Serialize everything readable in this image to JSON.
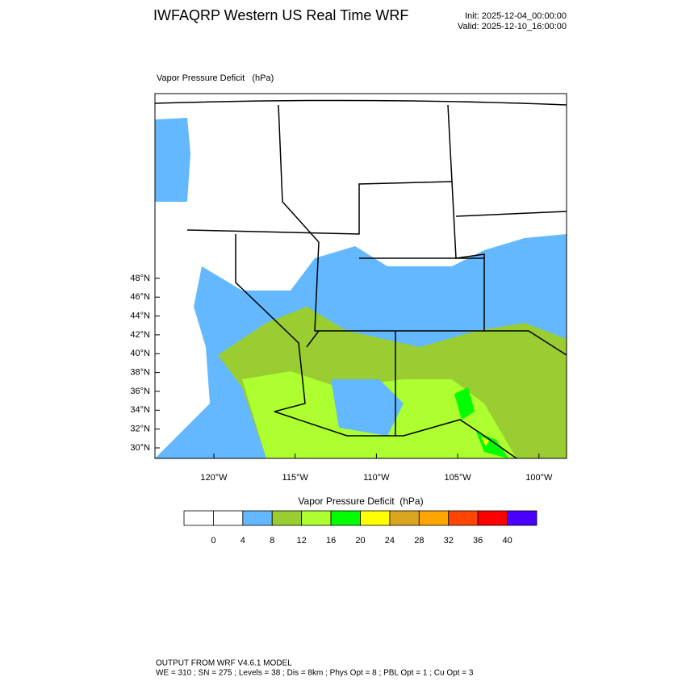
{
  "header": {
    "title": "IWFAQRP Western US Real Time WRF",
    "init": "Init: 2025-12-04_00:00:00",
    "valid": "Valid: 2025-12-10_16:00:00"
  },
  "map": {
    "label": "Vapor Pressure Deficit   (hPa)",
    "lat_labels": [
      "30°N",
      "32°N",
      "34°N",
      "36°N",
      "38°N",
      "40°N",
      "42°N",
      "44°N",
      "46°N",
      "48°N"
    ],
    "lon_labels": [
      "120°W",
      "115°W",
      "110°W",
      "105°W",
      "100°W"
    ]
  },
  "legend": {
    "title": "Vapor Pressure Deficit  (hPa)",
    "labels": [
      "0",
      "4",
      "8",
      "12",
      "16",
      "20",
      "24",
      "28",
      "32",
      "36",
      "40"
    ],
    "colors": [
      "#ffffff",
      "#ffffff",
      "#63b8ff",
      "#9acd32",
      "#adff2f",
      "#00ff00",
      "#ffff00",
      "#daa520",
      "#ffa500",
      "#ff4500",
      "#ff0000",
      "#4a00ff"
    ]
  },
  "footer": {
    "line1": "OUTPUT FROM WRF V4.6.1 MODEL",
    "line2": "WE = 310 ; SN = 275 ; Levels = 38 ; Dis = 8km ; Phys Opt = 8 ; PBL Opt = 1 ; Cu Opt = 3"
  }
}
